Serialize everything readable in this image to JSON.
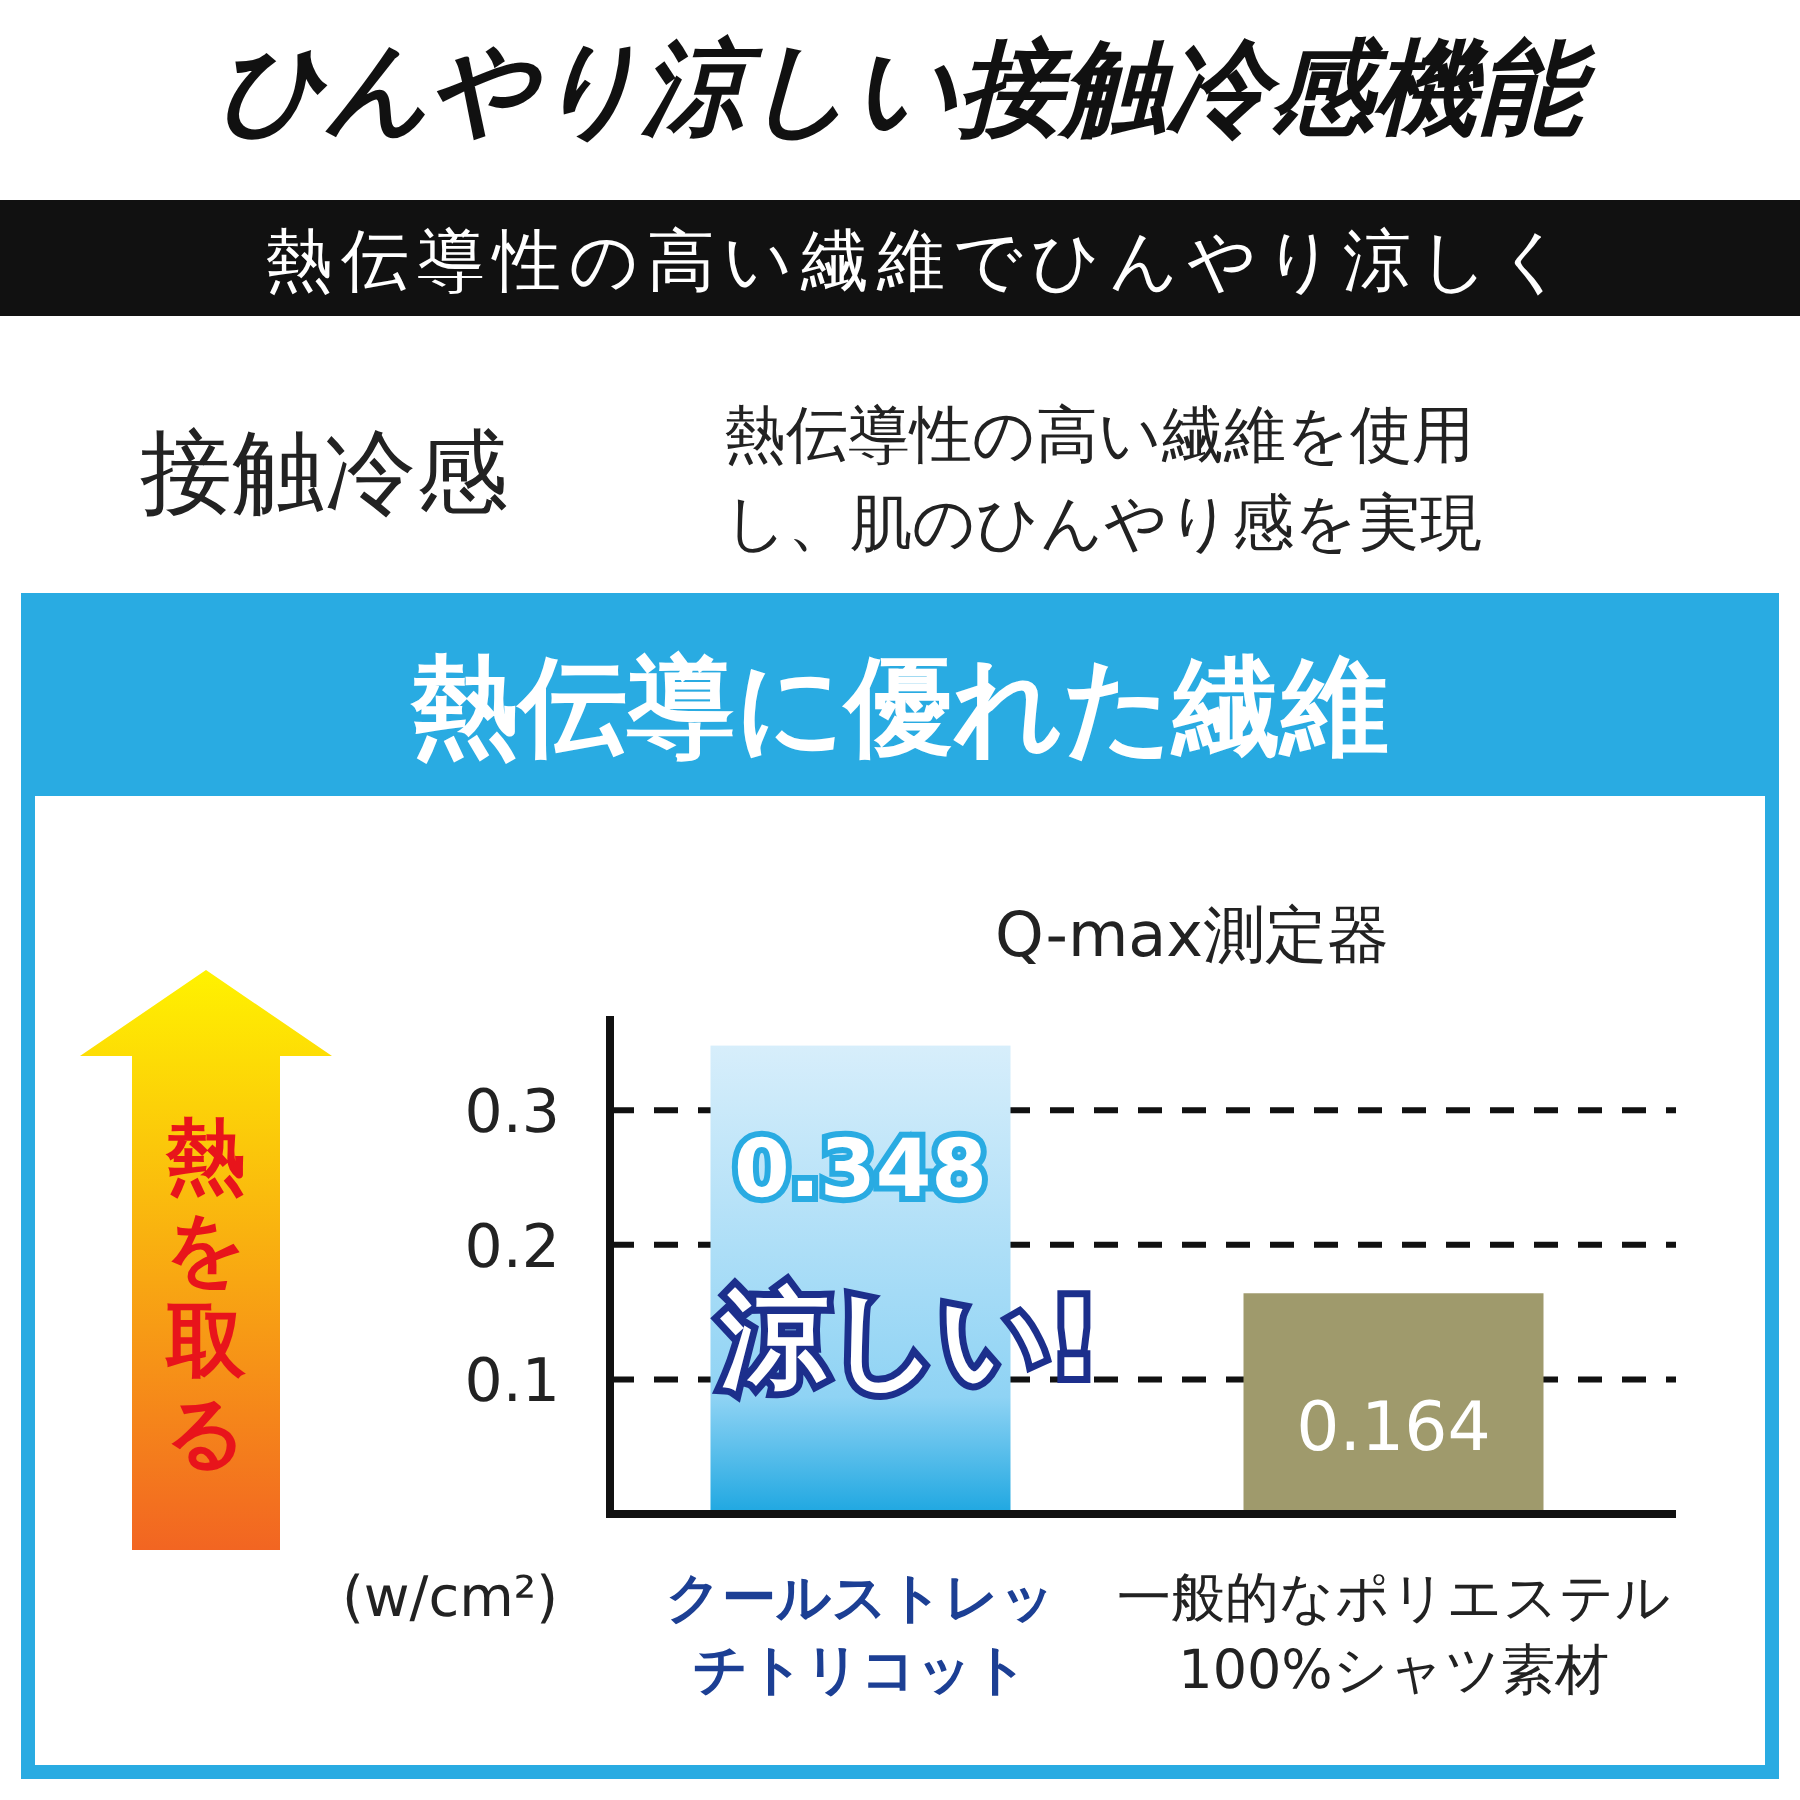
{
  "chart_data": {
    "type": "bar",
    "title": "ひんやり涼しい接触冷感機能",
    "subtitle": "熱伝導性の高い繊維でひんやり涼しく",
    "annotations": [
      "接触冷感",
      "熱伝導性の高い繊維を使用し、肌のひんやり感を実現",
      "熱伝導に優れた繊維",
      "Q-max測定器",
      "熱を取る",
      "涼しい!"
    ],
    "ylabel": "(w/cm²)",
    "categories": [
      "クールストレッチトリコット",
      "一般的なポリエステル100%シャツ素材"
    ],
    "values": [
      0.348,
      0.164
    ],
    "colors": [
      "#8fd3f4",
      "#9f9a6c"
    ],
    "ylim": [
      0,
      0.37
    ],
    "yticks": [
      0.1,
      0.2,
      0.3
    ],
    "grid": "y",
    "data_labels": true
  }
}
